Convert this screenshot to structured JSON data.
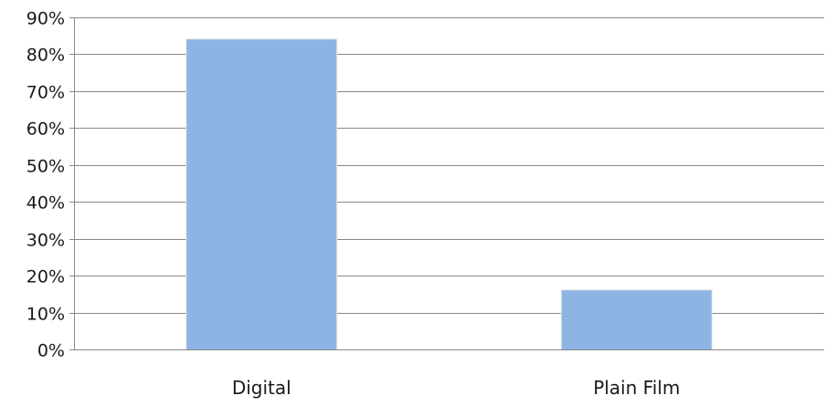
{
  "chart_data": {
    "type": "bar",
    "categories": [
      "Digital",
      "Plain Film"
    ],
    "values": [
      84,
      16
    ],
    "ylim": [
      0,
      90
    ],
    "y_ticks": [
      "0%",
      "10%",
      "20%",
      "30%",
      "40%",
      "50%",
      "60%",
      "70%",
      "80%",
      "90%"
    ],
    "y_tick_values": [
      0,
      10,
      20,
      30,
      40,
      50,
      60,
      70,
      80,
      90
    ],
    "grid": true,
    "legend": "none",
    "bar_color": "#8eb4e3",
    "grid_color": "#888888"
  }
}
